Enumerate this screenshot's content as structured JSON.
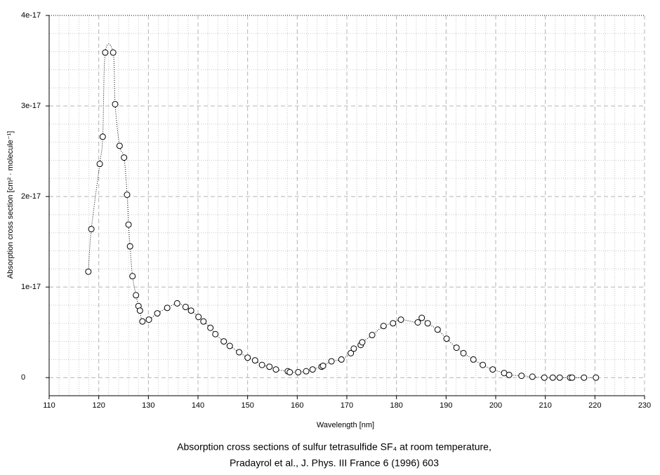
{
  "chart_data": {
    "type": "scatter",
    "title": "Absorption cross sections of sulfur tetrasulfide SF₄ at room temperature,",
    "subtitle": "Pradayrol et al., J. Phys. III France 6 (1996) 603",
    "x_label": "Wavelength [nm]",
    "y_label": "Absorption cross section [cm² · molecule⁻¹]",
    "xlim": [
      110,
      230
    ],
    "ylim": [
      -2e-18,
      4e-17
    ],
    "xticks": [
      110,
      120,
      130,
      140,
      150,
      160,
      170,
      180,
      190,
      200,
      210,
      220,
      230
    ],
    "yticks": [
      0,
      1e-17,
      2e-17,
      3e-17,
      4e-17
    ],
    "grid": true,
    "series": [
      {
        "color": "#000000",
        "x": [
          117.9,
          118.5,
          120.2,
          120.8,
          121.3,
          122.9,
          123.3,
          124.2,
          125.1,
          125.7,
          126.0,
          126.3,
          126.8,
          127.5,
          128.0,
          128.3,
          128.8,
          130.1,
          131.8,
          133.8,
          135.8,
          137.5,
          138.6,
          140.1,
          141.1,
          142.5,
          143.5,
          145.2,
          146.4,
          148.3,
          150.0,
          151.5,
          152.9,
          154.4,
          155.7,
          158.1,
          158.5,
          160.2,
          161.8,
          163.1,
          164.9,
          165.2,
          166.9,
          168.9,
          170.8,
          171.4,
          172.8,
          173.1,
          175.1,
          177.4,
          179.3,
          180.9,
          184.3,
          185.1,
          186.3,
          188.3,
          190.1,
          192.1,
          193.5,
          195.5,
          197.4,
          199.4,
          201.7,
          202.7,
          205.2,
          207.4,
          209.8,
          211.5,
          212.9,
          215.0,
          215.4,
          217.8,
          220.2
        ],
        "values": [
          1.17e-17,
          1.64e-17,
          2.36e-17,
          2.66e-17,
          3.59e-17,
          3.59e-17,
          3.02e-17,
          2.56e-17,
          2.43e-17,
          2.02e-17,
          1.69e-17,
          1.45e-17,
          1.12e-17,
          9.1e-18,
          7.9e-18,
          7.4e-18,
          6.2e-18,
          6.4e-18,
          7.1e-18,
          7.7e-18,
          8.2e-18,
          7.8e-18,
          7.4e-18,
          6.7e-18,
          6.2e-18,
          5.5e-18,
          4.8e-18,
          4e-18,
          3.5e-18,
          2.8e-18,
          2.2e-18,
          1.9e-18,
          1.4e-18,
          1.2e-18,
          9e-19,
          7e-19,
          6e-19,
          6e-19,
          7e-19,
          9e-19,
          1.2e-18,
          1.3e-18,
          1.8e-18,
          2e-18,
          2.7e-18,
          3.2e-18,
          3.6e-18,
          3.9e-18,
          4.7e-18,
          5.7e-18,
          6e-18,
          6.4e-18,
          6.1e-18,
          6.6e-18,
          6e-18,
          5.3e-18,
          4.3e-18,
          3.3e-18,
          2.7e-18,
          2e-18,
          1.4e-18,
          9e-19,
          5e-19,
          3e-19,
          2e-19,
          1e-19,
          0,
          0,
          0,
          0,
          0,
          0,
          0
        ]
      }
    ]
  }
}
